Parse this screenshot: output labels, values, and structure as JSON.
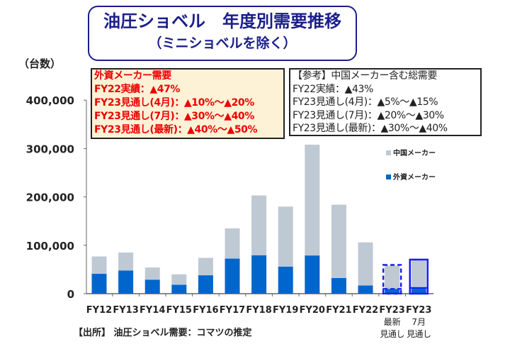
{
  "title": {
    "line1": "油圧ショベル　年度別需要推移",
    "line2": "（ミニショベルを除く）"
  },
  "unit_label": "（台数）",
  "box_foreign": {
    "lines": [
      "外資メーカー需要",
      "FY22実績：▲47%",
      "FY23見通し(4月)：▲10%～▲20%",
      "FY23見通し(7月)：▲30%～▲40%",
      "FY23見通し(最新)：▲40%～▲50%"
    ]
  },
  "box_total": {
    "lines": [
      "【参考】中国メーカー含む総需要",
      "FY22実績：▲43%",
      "FY23見通し(4月)：▲5%～▲15%",
      "FY23見通し(7月)：▲20%～▲30%",
      "FY23見通し(最新)：▲30%～▲40%"
    ]
  },
  "source": "【出所】 油圧ショベル需要：コマツの推定",
  "chart_data": {
    "type": "bar",
    "stacked": true,
    "ylim": [
      0,
      400000
    ],
    "yticks": [
      "0",
      "100,000",
      "200,000",
      "300,000",
      "400,000"
    ],
    "categories": [
      [
        "FY12"
      ],
      [
        "FY13"
      ],
      [
        "FY14"
      ],
      [
        "FY15"
      ],
      [
        "FY16"
      ],
      [
        "FY17"
      ],
      [
        "FY18"
      ],
      [
        "FY19"
      ],
      [
        "FY20"
      ],
      [
        "FY21"
      ],
      [
        "FY22"
      ],
      [
        "FY23",
        "最新",
        "見通し"
      ],
      [
        "FY23",
        "7月",
        "見通し"
      ]
    ],
    "series": [
      {
        "name": "外資メーカー",
        "color": "#0066cc",
        "values": [
          41000,
          48000,
          29000,
          18500,
          38000,
          72500,
          79500,
          56000,
          79000,
          32500,
          17000,
          10000,
          12000
        ]
      },
      {
        "name": "中国メーカー",
        "color": "#bfc9d4",
        "values": [
          36000,
          37000,
          25000,
          21500,
          36000,
          62500,
          123500,
          124000,
          229000,
          151500,
          89000,
          48000,
          57000
        ]
      }
    ],
    "forecast_outline": {
      "color": "#1a1aff",
      "styles": [
        "dashed",
        "solid"
      ]
    },
    "legend": "right",
    "grid": false
  }
}
